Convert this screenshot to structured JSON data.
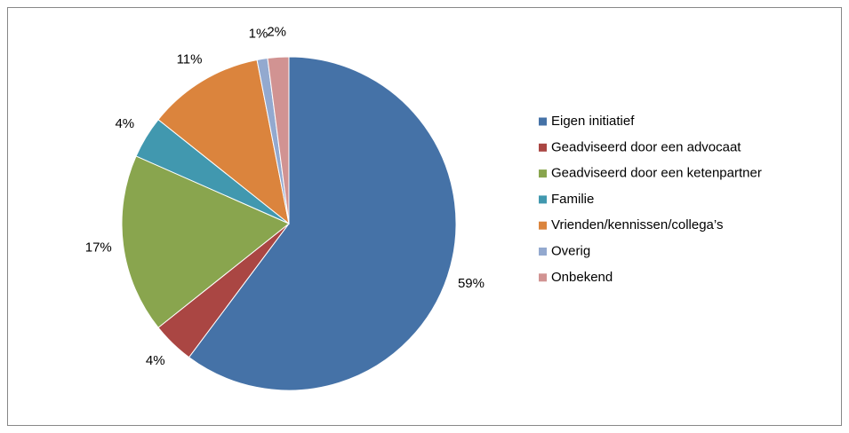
{
  "chart_data": {
    "type": "pie",
    "categories": [
      "Eigen initiatief",
      "Geadviseerd door een advocaat",
      "Geadviseerd door een ketenpartner",
      "Familie",
      "Vrienden/kennissen/collega’s",
      "Overig",
      "Onbekend"
    ],
    "values": [
      59,
      4,
      17,
      4,
      11,
      1,
      2
    ],
    "value_labels": [
      "59%",
      "4%",
      "17%",
      "4%",
      "11%",
      "1%",
      "2%"
    ],
    "colors": [
      "#4572a7",
      "#aa4643",
      "#89a54e",
      "#4198af",
      "#db843d",
      "#93a9cf",
      "#d19392"
    ],
    "legend": "right"
  }
}
